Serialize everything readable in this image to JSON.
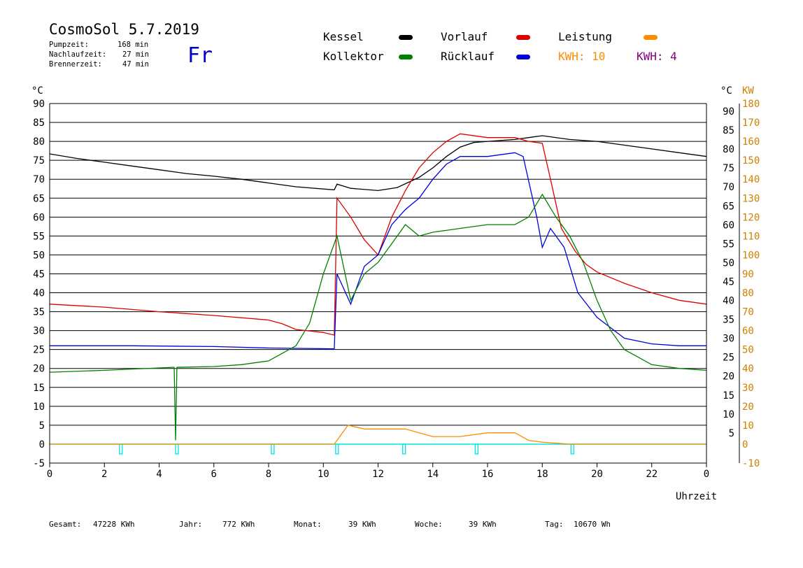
{
  "header": {
    "title": "CosmoSol 5.7.2019",
    "day": "Fr",
    "stats": [
      {
        "label": "Pumpzeit:",
        "value": "168 min"
      },
      {
        "label": "Nachlaufzeit:",
        "value": "27 min"
      },
      {
        "label": "Brennerzeit:",
        "value": "47 min"
      }
    ]
  },
  "legend": {
    "kessel": "Kessel",
    "kollektor": "Kollektor",
    "vorlauf": "Vorlauf",
    "ruecklauf": "Rücklauf",
    "leistung": "Leistung",
    "kwh1": "KWH: 10",
    "kwh2": "KWH: 4"
  },
  "footer": {
    "gesamt_label": "Gesamt:",
    "gesamt_value": "47228 KWh",
    "jahr_label": "Jahr:",
    "jahr_value": "772 KWh",
    "monat_label": "Monat:",
    "monat_value": "39 KWh",
    "woche_label": "Woche:",
    "woche_value": "39 KWh",
    "tag_label": "Tag:",
    "tag_value": "10670 Wh"
  },
  "colors": {
    "kessel": "#000000",
    "kollektor": "#008000",
    "vorlauf": "#dd0000",
    "ruecklauf": "#0000dd",
    "leistung": "#ff8c00",
    "kwh2": "#800080",
    "baseline": "#00e5e5"
  },
  "chart_data": {
    "type": "line",
    "xlabel": "Uhrzeit",
    "ylabel_left": "°C",
    "ylabel_right_unit1": "°C",
    "ylabel_right_unit2": "KW",
    "xlim": [
      0,
      24
    ],
    "ylim": [
      -5,
      90
    ],
    "x_ticks": [
      "0",
      "2",
      "4",
      "6",
      "8",
      "10",
      "12",
      "14",
      "16",
      "18",
      "20",
      "22",
      "0"
    ],
    "y_ticks_left": [
      "90",
      "85",
      "80",
      "75",
      "70",
      "65",
      "60",
      "55",
      "50",
      "45",
      "40",
      "35",
      "30",
      "25",
      "20",
      "15",
      "10",
      "5",
      "0",
      "-5"
    ],
    "y_ticks_right": [
      "90",
      "85",
      "80",
      "75",
      "70",
      "65",
      "60",
      "55",
      "50",
      "45",
      "40",
      "35",
      "30",
      "25",
      "20",
      "15",
      "10",
      "5"
    ],
    "y_ticks_kw": [
      "180",
      "170",
      "160",
      "150",
      "140",
      "130",
      "120",
      "110",
      "100",
      "90",
      "80",
      "70",
      "60",
      "50",
      "40",
      "30",
      "20",
      "10",
      "0",
      "-10"
    ],
    "series": [
      {
        "name": "Kessel",
        "key": "kessel",
        "points": [
          [
            0,
            76.7
          ],
          [
            1,
            75.5
          ],
          [
            2,
            74.5
          ],
          [
            3,
            73.5
          ],
          [
            4,
            72.5
          ],
          [
            5,
            71.5
          ],
          [
            6,
            70.8
          ],
          [
            7,
            70
          ],
          [
            8,
            69
          ],
          [
            9,
            68
          ],
          [
            10.4,
            67.2
          ],
          [
            10.5,
            68.7
          ],
          [
            11,
            67.6
          ],
          [
            12,
            67
          ],
          [
            12.7,
            67.8
          ],
          [
            13.5,
            70.5
          ],
          [
            14,
            73
          ],
          [
            14.5,
            76
          ],
          [
            15,
            78.5
          ],
          [
            15.5,
            79.7
          ],
          [
            16,
            80
          ],
          [
            17,
            80.5
          ],
          [
            17.5,
            81
          ],
          [
            18,
            81.5
          ],
          [
            19,
            80.5
          ],
          [
            20,
            80
          ],
          [
            21,
            79
          ],
          [
            22,
            78
          ],
          [
            23,
            77
          ],
          [
            24,
            76
          ]
        ]
      },
      {
        "name": "Vorlauf",
        "key": "vorlauf",
        "points": [
          [
            0,
            37
          ],
          [
            2,
            36.2
          ],
          [
            4,
            35
          ],
          [
            6,
            34
          ],
          [
            8,
            32.8
          ],
          [
            8.5,
            31.8
          ],
          [
            9,
            30.3
          ],
          [
            10,
            29.5
          ],
          [
            10.4,
            28.8
          ],
          [
            10.5,
            65
          ],
          [
            11,
            60
          ],
          [
            11.5,
            54
          ],
          [
            12,
            50
          ],
          [
            12.5,
            60
          ],
          [
            13,
            67
          ],
          [
            13.5,
            73
          ],
          [
            14,
            77
          ],
          [
            14.5,
            80
          ],
          [
            15,
            82
          ],
          [
            16,
            81
          ],
          [
            17,
            81
          ],
          [
            17.5,
            80
          ],
          [
            18,
            79.5
          ],
          [
            18.3,
            70
          ],
          [
            18.7,
            57
          ],
          [
            19.2,
            51
          ],
          [
            19.6,
            47.5
          ],
          [
            20,
            45.5
          ],
          [
            21,
            42.5
          ],
          [
            22,
            40
          ],
          [
            23,
            38
          ],
          [
            24,
            37
          ]
        ]
      },
      {
        "name": "Rücklauf",
        "key": "ruecklauf",
        "points": [
          [
            0,
            26
          ],
          [
            3,
            26
          ],
          [
            6,
            25.8
          ],
          [
            8,
            25.4
          ],
          [
            10.4,
            25.2
          ],
          [
            10.5,
            45
          ],
          [
            11,
            37
          ],
          [
            11.5,
            47
          ],
          [
            12,
            50
          ],
          [
            12.5,
            58
          ],
          [
            13,
            62
          ],
          [
            13.5,
            65
          ],
          [
            14,
            70
          ],
          [
            14.5,
            74
          ],
          [
            15,
            76
          ],
          [
            16,
            76
          ],
          [
            17,
            77
          ],
          [
            17.3,
            76
          ],
          [
            17.8,
            60
          ],
          [
            18,
            52
          ],
          [
            18.3,
            57
          ],
          [
            18.8,
            52
          ],
          [
            19.3,
            40
          ],
          [
            20,
            33.5
          ],
          [
            21,
            28
          ],
          [
            22,
            26.5
          ],
          [
            23,
            26
          ],
          [
            24,
            26
          ]
        ]
      },
      {
        "name": "Kollektor",
        "key": "kollektor",
        "points": [
          [
            0,
            19
          ],
          [
            2,
            19.5
          ],
          [
            4.5,
            20.3
          ],
          [
            4.55,
            20.3
          ],
          [
            4.6,
            1
          ],
          [
            4.65,
            20.3
          ],
          [
            6,
            20.5
          ],
          [
            7,
            21
          ],
          [
            8,
            22
          ],
          [
            9,
            26
          ],
          [
            9.5,
            32
          ],
          [
            10,
            45
          ],
          [
            10.5,
            55
          ],
          [
            11,
            38
          ],
          [
            11.5,
            45
          ],
          [
            12,
            48
          ],
          [
            12.5,
            53
          ],
          [
            13,
            58
          ],
          [
            13.5,
            55
          ],
          [
            14,
            56
          ],
          [
            15,
            57
          ],
          [
            16,
            58
          ],
          [
            17,
            58
          ],
          [
            17.5,
            60
          ],
          [
            18,
            66
          ],
          [
            18.5,
            60
          ],
          [
            19,
            55
          ],
          [
            19.5,
            48
          ],
          [
            20,
            38
          ],
          [
            20.5,
            30
          ],
          [
            21,
            25
          ],
          [
            22,
            21
          ],
          [
            23,
            20
          ],
          [
            24,
            19.5
          ]
        ]
      },
      {
        "name": "Leistung",
        "key": "leistung",
        "points": [
          [
            0,
            0
          ],
          [
            10.4,
            0
          ],
          [
            10.9,
            5
          ],
          [
            11.5,
            4
          ],
          [
            12,
            4
          ],
          [
            12.5,
            4
          ],
          [
            13,
            4
          ],
          [
            13.5,
            3
          ],
          [
            14,
            2
          ],
          [
            15,
            2
          ],
          [
            16,
            3
          ],
          [
            17,
            3
          ],
          [
            17.5,
            1
          ],
          [
            18,
            0.5
          ],
          [
            19,
            0
          ],
          [
            24,
            0
          ]
        ]
      }
    ]
  }
}
